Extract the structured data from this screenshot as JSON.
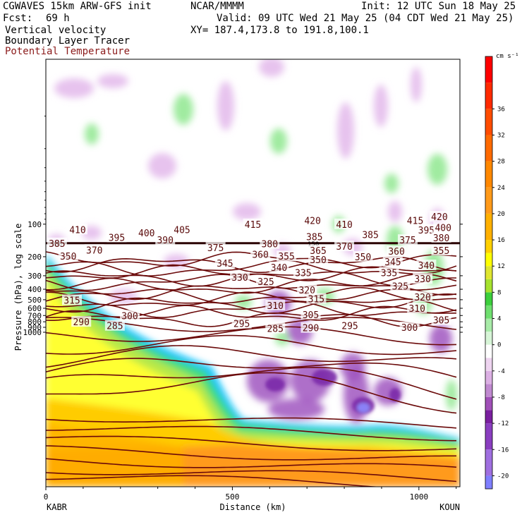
{
  "header": {
    "model": "CGWAVES 15km ARW-GFS init",
    "org": "NCAR/MMMM",
    "init": "Init: 12 UTC Sun 18 May 25",
    "fcst_label": "Fcst:",
    "fcst_value": "69 h",
    "valid": "Valid: 09 UTC Wed 21 May 25 (04 CDT Wed 21 May 25)",
    "field1": "Vertical velocity",
    "field2": "Boundary Layer Tracer",
    "field3": "Potential Temperature",
    "xy": "XY= 187.4,173.8 to 191.8,100.1"
  },
  "colors": {
    "isentrope": "#6b0a0a",
    "field3_text": "#8b1a1a",
    "colorbar": [
      "#7f7fff",
      "#9f6fe0",
      "#8a3ec0",
      "#7a1f9f",
      "#a050b8",
      "#c08ad0",
      "#dcb0e4",
      "#eed4f0",
      "#ffffff",
      "#d7f5d7",
      "#a8eba8",
      "#6fdf6f",
      "#3ccf3c",
      "#a6e22e",
      "#dfe630",
      "#ffff00",
      "#ffd000",
      "#ffb000",
      "#ff9a1a",
      "#ff8800",
      "#ff6a00",
      "#ff4c00",
      "#ff2a00",
      "#ff0000"
    ]
  },
  "chart_data": {
    "type": "heatmap",
    "title": "Vertical velocity",
    "xlabel": "Distance (km)",
    "ylabel": "Pressure (hPa), log scale",
    "xlim": [
      0,
      1110
    ],
    "ylim": [
      1000,
      10
    ],
    "x_ticks": [
      0,
      500,
      1000
    ],
    "y_ticks": [
      100,
      200,
      300,
      400,
      500,
      600,
      700,
      800,
      900,
      1000
    ],
    "x_endpoints": {
      "left": "KABR",
      "right": "KOUN"
    },
    "colorbar": {
      "units": "cm s⁻¹",
      "ticks": [
        -20,
        -16,
        -12,
        -8,
        -4,
        0,
        4,
        8,
        12,
        16,
        20,
        24,
        28,
        32,
        36
      ],
      "min": -22,
      "max": 44
    },
    "isentrope_values": [
      285,
      290,
      295,
      300,
      305,
      310,
      315,
      320,
      325,
      330,
      335,
      340,
      345,
      350,
      355,
      360,
      365,
      370,
      375,
      380,
      385,
      390,
      395,
      400,
      405,
      410,
      415,
      420
    ],
    "isentrope_labels": [
      {
        "theta": 410,
        "x": 85,
        "p": 112
      },
      {
        "theta": 415,
        "x": 555,
        "p": 100
      },
      {
        "theta": 420,
        "x": 715,
        "p": 92
      },
      {
        "theta": 410,
        "x": 800,
        "p": 100
      },
      {
        "theta": 415,
        "x": 990,
        "p": 92
      },
      {
        "theta": 420,
        "x": 1055,
        "p": 85
      },
      {
        "theta": 395,
        "x": 190,
        "p": 132
      },
      {
        "theta": 400,
        "x": 270,
        "p": 120
      },
      {
        "theta": 405,
        "x": 365,
        "p": 112
      },
      {
        "theta": 390,
        "x": 320,
        "p": 140
      },
      {
        "theta": 385,
        "x": 720,
        "p": 130
      },
      {
        "theta": 385,
        "x": 870,
        "p": 125
      },
      {
        "theta": 395,
        "x": 1020,
        "p": 113
      },
      {
        "theta": 400,
        "x": 1065,
        "p": 107
      },
      {
        "theta": 375,
        "x": 455,
        "p": 165
      },
      {
        "theta": 380,
        "x": 600,
        "p": 152
      },
      {
        "theta": 375,
        "x": 970,
        "p": 140
      },
      {
        "theta": 380,
        "x": 1060,
        "p": 133
      },
      {
        "theta": 385,
        "x": 30,
        "p": 150
      },
      {
        "theta": 370,
        "x": 130,
        "p": 173
      },
      {
        "theta": 370,
        "x": 800,
        "p": 160
      },
      {
        "theta": 365,
        "x": 730,
        "p": 175
      },
      {
        "theta": 360,
        "x": 575,
        "p": 190
      },
      {
        "theta": 355,
        "x": 645,
        "p": 198
      },
      {
        "theta": 350,
        "x": 730,
        "p": 213
      },
      {
        "theta": 350,
        "x": 850,
        "p": 200
      },
      {
        "theta": 360,
        "x": 940,
        "p": 178
      },
      {
        "theta": 355,
        "x": 1060,
        "p": 175
      },
      {
        "theta": 350,
        "x": 60,
        "p": 198
      },
      {
        "theta": 345,
        "x": 480,
        "p": 230
      },
      {
        "theta": 345,
        "x": 930,
        "p": 222
      },
      {
        "theta": 340,
        "x": 625,
        "p": 250
      },
      {
        "theta": 340,
        "x": 1020,
        "p": 240
      },
      {
        "theta": 335,
        "x": 690,
        "p": 280
      },
      {
        "theta": 335,
        "x": 920,
        "p": 280
      },
      {
        "theta": 330,
        "x": 520,
        "p": 310
      },
      {
        "theta": 330,
        "x": 1010,
        "p": 320
      },
      {
        "theta": 325,
        "x": 590,
        "p": 340
      },
      {
        "theta": 325,
        "x": 950,
        "p": 375
      },
      {
        "theta": 320,
        "x": 700,
        "p": 405
      },
      {
        "theta": 320,
        "x": 1010,
        "p": 470
      },
      {
        "theta": 315,
        "x": 70,
        "p": 505
      },
      {
        "theta": 315,
        "x": 725,
        "p": 490
      },
      {
        "theta": 310,
        "x": 615,
        "p": 565
      },
      {
        "theta": 310,
        "x": 995,
        "p": 600
      },
      {
        "theta": 305,
        "x": 710,
        "p": 685
      },
      {
        "theta": 305,
        "x": 1060,
        "p": 770
      },
      {
        "theta": 300,
        "x": 225,
        "p": 700
      },
      {
        "theta": 300,
        "x": 975,
        "p": 900
      },
      {
        "theta": 295,
        "x": 525,
        "p": 830
      },
      {
        "theta": 295,
        "x": 815,
        "p": 870
      },
      {
        "theta": 290,
        "x": 95,
        "p": 800
      },
      {
        "theta": 290,
        "x": 710,
        "p": 910
      },
      {
        "theta": 285,
        "x": 185,
        "p": 870
      },
      {
        "theta": 285,
        "x": 615,
        "p": 920
      }
    ],
    "tropopause_marker": {
      "p": 150,
      "labels": [
        "150",
        "150"
      ]
    }
  }
}
